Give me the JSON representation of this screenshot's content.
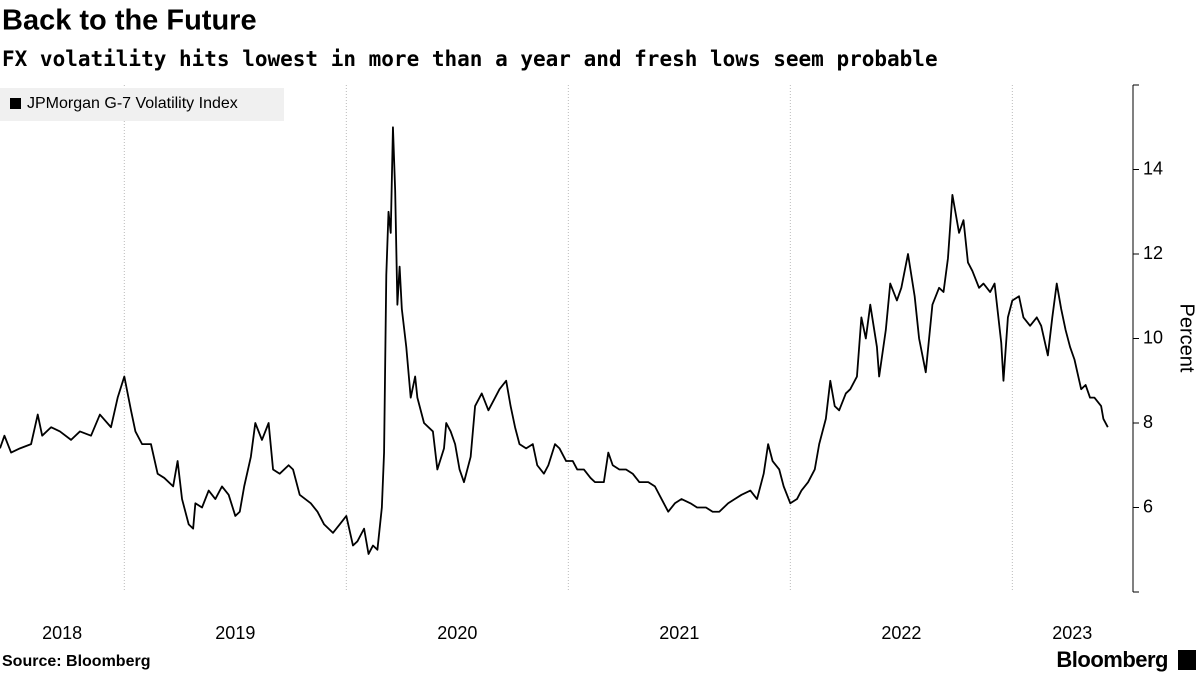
{
  "chart_data": {
    "type": "line",
    "title": "Back to the Future",
    "subtitle": "FX volatility hits lowest in more than a year and fresh lows seem probable",
    "y_label": "Percent",
    "source": "Source: Bloomberg",
    "logo": "Bloomberg",
    "series": [
      {
        "name": "JPMorgan G-7 Volatility Index",
        "color": "#000000",
        "x": [
          2018.44,
          2018.46,
          2018.49,
          2018.53,
          2018.58,
          2018.61,
          2018.63,
          2018.67,
          2018.71,
          2018.76,
          2018.8,
          2018.85,
          2018.89,
          2018.94,
          2018.97,
          2019.0,
          2019.03,
          2019.05,
          2019.08,
          2019.12,
          2019.15,
          2019.18,
          2019.22,
          2019.24,
          2019.26,
          2019.29,
          2019.31,
          2019.32,
          2019.35,
          2019.38,
          2019.41,
          2019.44,
          2019.47,
          2019.5,
          2019.52,
          2019.54,
          2019.57,
          2019.59,
          2019.62,
          2019.65,
          2019.67,
          2019.7,
          2019.74,
          2019.76,
          2019.79,
          2019.84,
          2019.87,
          2019.9,
          2019.94,
          2019.97,
          2020.0,
          2020.03,
          2020.05,
          2020.08,
          2020.1,
          2020.12,
          2020.14,
          2020.16,
          2020.17,
          2020.18,
          2020.19,
          2020.2,
          2020.21,
          2020.22,
          2020.23,
          2020.24,
          2020.25,
          2020.27,
          2020.29,
          2020.31,
          2020.32,
          2020.35,
          2020.39,
          2020.41,
          2020.44,
          2020.45,
          2020.47,
          2020.49,
          2020.51,
          2020.53,
          2020.56,
          2020.58,
          2020.61,
          2020.64,
          2020.67,
          2020.69,
          2020.72,
          2020.74,
          2020.76,
          2020.78,
          2020.81,
          2020.84,
          2020.86,
          2020.89,
          2020.91,
          2020.94,
          2020.96,
          2020.99,
          2021.02,
          2021.04,
          2021.07,
          2021.1,
          2021.12,
          2021.16,
          2021.18,
          2021.2,
          2021.23,
          2021.26,
          2021.29,
          2021.32,
          2021.36,
          2021.39,
          2021.42,
          2021.45,
          2021.48,
          2021.51,
          2021.55,
          2021.58,
          2021.62,
          2021.65,
          2021.68,
          2021.72,
          2021.75,
          2021.78,
          2021.82,
          2021.85,
          2021.88,
          2021.9,
          2021.92,
          2021.95,
          2021.97,
          2022.0,
          2022.03,
          2022.05,
          2022.08,
          2022.11,
          2022.13,
          2022.16,
          2022.18,
          2022.2,
          2022.22,
          2022.25,
          2022.27,
          2022.3,
          2022.32,
          2022.34,
          2022.36,
          2022.39,
          2022.4,
          2022.43,
          2022.45,
          2022.48,
          2022.5,
          2022.53,
          2022.56,
          2022.58,
          2022.61,
          2022.64,
          2022.67,
          2022.69,
          2022.71,
          2022.73,
          2022.76,
          2022.78,
          2022.8,
          2022.82,
          2022.85,
          2022.87,
          2022.9,
          2022.92,
          2022.95,
          2022.96,
          2022.98,
          2023.0,
          2023.03,
          2023.05,
          2023.08,
          2023.11,
          2023.13,
          2023.16,
          2023.18,
          2023.2,
          2023.22,
          2023.24,
          2023.26,
          2023.28,
          2023.31,
          2023.33,
          2023.35,
          2023.37,
          2023.4,
          2023.41,
          2023.43
        ],
        "values": [
          7.4,
          7.7,
          7.3,
          7.4,
          7.5,
          8.2,
          7.7,
          7.9,
          7.8,
          7.6,
          7.8,
          7.7,
          8.2,
          7.9,
          8.6,
          9.1,
          8.3,
          7.8,
          7.5,
          7.5,
          6.8,
          6.7,
          6.5,
          7.1,
          6.2,
          5.6,
          5.5,
          6.1,
          6.0,
          6.4,
          6.2,
          6.5,
          6.3,
          5.8,
          5.9,
          6.5,
          7.2,
          8.0,
          7.6,
          8.0,
          6.9,
          6.8,
          7.0,
          6.9,
          6.3,
          6.1,
          5.9,
          5.6,
          5.4,
          5.6,
          5.8,
          5.1,
          5.2,
          5.5,
          4.9,
          5.1,
          5.0,
          6.0,
          7.3,
          11.5,
          13.0,
          12.5,
          15.0,
          13.5,
          10.8,
          11.7,
          10.7,
          9.8,
          8.6,
          9.1,
          8.6,
          8.0,
          7.8,
          6.9,
          7.4,
          8.0,
          7.8,
          7.5,
          6.9,
          6.6,
          7.2,
          8.4,
          8.7,
          8.3,
          8.6,
          8.8,
          9.0,
          8.4,
          7.9,
          7.5,
          7.4,
          7.5,
          7.0,
          6.8,
          7.0,
          7.5,
          7.4,
          7.1,
          7.1,
          6.9,
          6.9,
          6.7,
          6.6,
          6.6,
          7.3,
          7.0,
          6.9,
          6.9,
          6.8,
          6.6,
          6.6,
          6.5,
          6.2,
          5.9,
          6.1,
          6.2,
          6.1,
          6.0,
          6.0,
          5.9,
          5.9,
          6.1,
          6.2,
          6.3,
          6.4,
          6.2,
          6.8,
          7.5,
          7.1,
          6.9,
          6.5,
          6.1,
          6.2,
          6.4,
          6.6,
          6.9,
          7.5,
          8.1,
          9.0,
          8.4,
          8.3,
          8.7,
          8.8,
          9.1,
          10.5,
          10.0,
          10.8,
          9.8,
          9.1,
          10.2,
          11.3,
          10.9,
          11.2,
          12.0,
          11.0,
          10.0,
          9.2,
          10.8,
          11.2,
          11.1,
          11.9,
          13.4,
          12.5,
          12.8,
          11.8,
          11.6,
          11.2,
          11.3,
          11.1,
          11.3,
          9.9,
          9.0,
          10.5,
          10.9,
          11.0,
          10.5,
          10.3,
          10.5,
          10.3,
          9.6,
          10.5,
          11.3,
          10.7,
          10.2,
          9.8,
          9.5,
          8.8,
          8.9,
          8.6,
          8.6,
          8.4,
          8.1,
          7.9
        ]
      }
    ],
    "xlim": [
      2018.44,
      2023.53
    ],
    "xticks": [
      2019,
      2020,
      2021,
      2022,
      2023
    ],
    "xtick_labels": [
      {
        "value": 2018.72,
        "label": "2018"
      },
      {
        "value": 2019.5,
        "label": "2019"
      },
      {
        "value": 2020.5,
        "label": "2020"
      },
      {
        "value": 2021.5,
        "label": "2021"
      },
      {
        "value": 2022.5,
        "label": "2022"
      },
      {
        "value": 2023.27,
        "label": "2023"
      }
    ],
    "ylim": [
      4,
      16
    ],
    "yticks": [
      6,
      8,
      10,
      12,
      14
    ],
    "grid": "x",
    "legend": "top-left"
  }
}
